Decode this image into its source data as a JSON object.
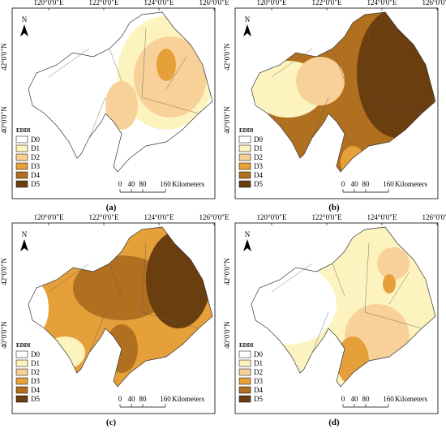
{
  "panels": [
    {
      "label": "(a)"
    },
    {
      "label": "(b)"
    },
    {
      "label": "(c)"
    },
    {
      "label": "(d)"
    }
  ],
  "map": {
    "lon_labels": [
      "120°0'0\"E",
      "122°0'0\"E",
      "124°0'0\"E",
      "126°0'0\"E"
    ],
    "lat_labels": [
      "42°0'0\"N",
      "40°0'0\"N"
    ],
    "north": "N",
    "legend": {
      "title": "EDDI",
      "items": [
        {
          "label": "D0",
          "color": "#ffffff"
        },
        {
          "label": "D1",
          "color": "#fdf3be"
        },
        {
          "label": "D2",
          "color": "#f8d199"
        },
        {
          "label": "D3",
          "color": "#e6a03a"
        },
        {
          "label": "D4",
          "color": "#b0701f"
        },
        {
          "label": "D5",
          "color": "#6b3e10"
        }
      ]
    },
    "scale": {
      "ticks": [
        "0",
        "40",
        "80",
        "160"
      ],
      "unit": "Kilometers"
    }
  }
}
